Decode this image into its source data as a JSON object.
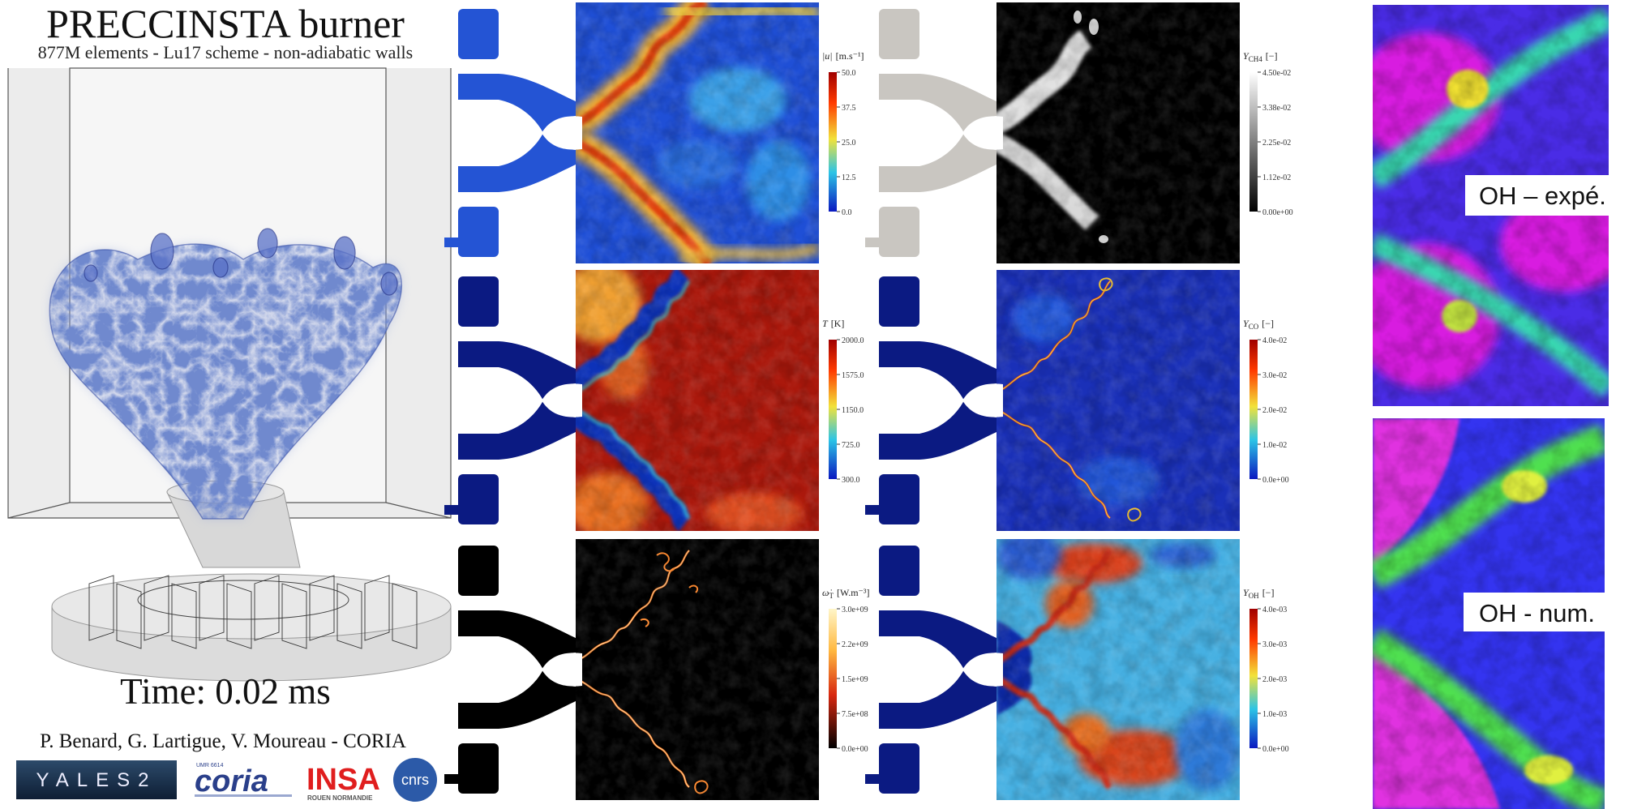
{
  "header": {
    "title": "PRECCINSTA burner",
    "subtitle": "877M elements - Lu17 scheme - non-adiabatic walls"
  },
  "time": "Time: 0.02 ms",
  "credits": "P. Benard, G. Lartigue, V. Moureau - CORIA",
  "logos": {
    "yales": "YALES2",
    "coria": "coria",
    "coria_small": "UMR 6614",
    "insa": "INSA",
    "insa_small": "ROUEN NORMANDIE",
    "cnrs": "cnrs"
  },
  "panels": [
    {
      "label": {
        "symbol": "|u|",
        "unit": "[m.s⁻¹]"
      },
      "ticks": [
        "50.0",
        "37.5",
        "25.0",
        "12.5",
        "0.0"
      ]
    },
    {
      "label": {
        "symbol": "T",
        "unit": "[K]"
      },
      "ticks": [
        "2000.0",
        "1575.0",
        "1150.0",
        "725.0",
        "300.0"
      ]
    },
    {
      "label": {
        "symbol": "ω̇",
        "subscript": "T",
        "unit": "[W.m⁻³]"
      },
      "ticks": [
        "3.0e+09",
        "2.2e+09",
        "1.5e+09",
        "7.5e+08",
        "0.0e+00"
      ]
    },
    {
      "label": {
        "symbol": "Y",
        "subscript": "CH4",
        "unit": "[−]"
      },
      "ticks": [
        "4.50e-02",
        "3.38e-02",
        "2.25e-02",
        "1.12e-02",
        "0.00e+00"
      ]
    },
    {
      "label": {
        "symbol": "Y",
        "subscript": "CO",
        "unit": "[−]"
      },
      "ticks": [
        "4.0e-02",
        "3.0e-02",
        "2.0e-02",
        "1.0e-02",
        "0.0e+00"
      ]
    },
    {
      "label": {
        "symbol": "Y",
        "subscript": "OH",
        "unit": "[−]"
      },
      "ticks": [
        "4.0e-03",
        "3.0e-03",
        "2.0e-03",
        "1.0e-03",
        "0.0e+00"
      ]
    }
  ],
  "oh_labels": [
    "OH – expé.",
    "OH - num."
  ]
}
